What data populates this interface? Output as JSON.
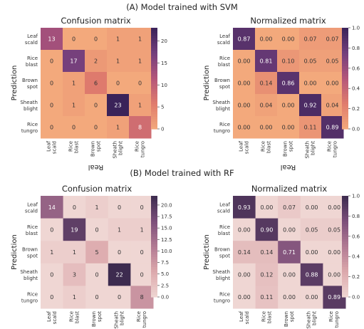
{
  "sections": [
    {
      "title": "(A) Model trained with SVM"
    },
    {
      "title": "(B) Model trained with RF"
    }
  ],
  "chart_data": [
    {
      "type": "heatmap",
      "title": "Confusion matrix",
      "xlabel": "Real",
      "ylabel": "Prediction",
      "x_categories": [
        "Leaf\nscald",
        "Rice\nblast",
        "Brown\nspot",
        "Sheath\nblight",
        "Rice\ntungro"
      ],
      "y_categories": [
        "Leaf\nscald",
        "Rice\nblast",
        "Brown\nspot",
        "Sheath\nblight",
        "Rice\ntungro"
      ],
      "values": [
        [
          13,
          0,
          0,
          1,
          1
        ],
        [
          0,
          17,
          2,
          1,
          1
        ],
        [
          0,
          1,
          6,
          0,
          0
        ],
        [
          0,
          1,
          0,
          23,
          1
        ],
        [
          0,
          0,
          0,
          1,
          8
        ]
      ],
      "value_labels": [
        [
          "13",
          "0",
          "0",
          "1",
          "1"
        ],
        [
          "0",
          "17",
          "2",
          "1",
          "1"
        ],
        [
          "0",
          "1",
          "6",
          "0",
          "0"
        ],
        [
          "0",
          "1",
          "0",
          "23",
          "1"
        ],
        [
          "0",
          "0",
          "0",
          "1",
          "8"
        ]
      ],
      "colorscale": [
        "#f3a97c",
        "#e07c6c",
        "#b4567a",
        "#733f7c",
        "#3a2359"
      ],
      "clim": [
        0,
        23
      ],
      "colorbar_ticks": [
        "0",
        "5",
        "10",
        "15",
        "20"
      ],
      "colorbar_values": [
        0,
        5,
        10,
        15,
        20
      ]
    },
    {
      "type": "heatmap",
      "title": "Normalized matrix",
      "xlabel": "Real",
      "ylabel": "Prediction",
      "x_categories": [
        "Leaf\nscald",
        "Rice\nblast",
        "Brown\nspot",
        "Sheath\nblight",
        "Rice\ntungro"
      ],
      "y_categories": [
        "Leaf\nscald",
        "Rice\nblast",
        "Brown\nspot",
        "Sheath\nblight",
        "Rice\ntungro"
      ],
      "values": [
        [
          0.87,
          0,
          0,
          0.07,
          0.07
        ],
        [
          0,
          0.81,
          0.1,
          0.05,
          0.05
        ],
        [
          0,
          0.14,
          0.86,
          0,
          0
        ],
        [
          0,
          0.04,
          0,
          0.92,
          0.04
        ],
        [
          0,
          0,
          0,
          0.11,
          0.89
        ]
      ],
      "value_labels": [
        [
          "0.87",
          "0.00",
          "0.00",
          "0.07",
          "0.07"
        ],
        [
          "0.00",
          "0.81",
          "0.10",
          "0.05",
          "0.05"
        ],
        [
          "0.00",
          "0.14",
          "0.86",
          "0.00",
          "0.00"
        ],
        [
          "0.00",
          "0.04",
          "0.00",
          "0.92",
          "0.04"
        ],
        [
          "0.00",
          "0.00",
          "0.00",
          "0.11",
          "0.89"
        ]
      ],
      "colorscale": [
        "#f3a97c",
        "#e07c6c",
        "#b4567a",
        "#733f7c",
        "#3a2359"
      ],
      "clim": [
        0,
        1
      ],
      "colorbar_ticks": [
        "0.0",
        "0.2",
        "0.4",
        "0.6",
        "0.8",
        "1.0"
      ],
      "colorbar_values": [
        0,
        0.2,
        0.4,
        0.6,
        0.8,
        1.0
      ]
    },
    {
      "type": "heatmap",
      "title": "Confusion matrix",
      "xlabel": "Real",
      "ylabel": "Prediction",
      "x_categories": [
        "Leaf\nscald",
        "Rice\nblast",
        "Brown\nspot",
        "Sheath\nblight",
        "Rice\ntungro"
      ],
      "y_categories": [
        "Leaf\nscald",
        "Rice\nblast",
        "Brown\nspot",
        "Sheath\nblight",
        "Rice\ntungro"
      ],
      "values": [
        [
          14,
          0,
          1,
          0,
          0
        ],
        [
          0,
          19,
          0,
          1,
          1
        ],
        [
          1,
          1,
          5,
          0,
          0
        ],
        [
          0,
          3,
          0,
          22,
          0
        ],
        [
          0,
          1,
          0,
          0,
          8
        ]
      ],
      "value_labels": [
        [
          "14",
          "0",
          "1",
          "0",
          "0"
        ],
        [
          "0",
          "19",
          "0",
          "1",
          "1"
        ],
        [
          "1",
          "1",
          "5",
          "0",
          "0"
        ],
        [
          "0",
          "3",
          "0",
          "22",
          "0"
        ],
        [
          "0",
          "1",
          "0",
          "0",
          "8"
        ]
      ],
      "colorscale": [
        "#efd6d3",
        "#dca9ac",
        "#b27a93",
        "#7c4f7a",
        "#3d2b4f"
      ],
      "clim": [
        0,
        22
      ],
      "colorbar_ticks": [
        "0.0",
        "2.5",
        "5.0",
        "7.5",
        "10.0",
        "12.5",
        "15.0",
        "17.5",
        "20.0"
      ],
      "colorbar_values": [
        0,
        2.5,
        5,
        7.5,
        10,
        12.5,
        15,
        17.5,
        20
      ]
    },
    {
      "type": "heatmap",
      "title": "Normalized matrix",
      "xlabel": "Real",
      "ylabel": "Prediction",
      "x_categories": [
        "Leaf\nscald",
        "Rice\nblast",
        "Brown\nspot",
        "Sheath\nblight",
        "Rice\ntungro"
      ],
      "y_categories": [
        "Leaf\nscald",
        "Rice\nblast",
        "Brown\nspot",
        "Sheath\nblight",
        "Rice\ntungro"
      ],
      "values": [
        [
          0.93,
          0,
          0.07,
          0,
          0
        ],
        [
          0,
          0.9,
          0,
          0.05,
          0.05
        ],
        [
          0.14,
          0.14,
          0.71,
          0,
          0
        ],
        [
          0,
          0.12,
          0,
          0.88,
          0
        ],
        [
          0,
          0.11,
          0,
          0,
          0.89
        ]
      ],
      "value_labels": [
        [
          "0.93",
          "0.00",
          "0.07",
          "0.00",
          "0.00"
        ],
        [
          "0.00",
          "0.90",
          "0.00",
          "0.05",
          "0.05"
        ],
        [
          "0.14",
          "0.14",
          "0.71",
          "0.00",
          "0.00"
        ],
        [
          "0.00",
          "0.12",
          "0.00",
          "0.88",
          "0.00"
        ],
        [
          "0.00",
          "0.11",
          "0.00",
          "0.00",
          "0.89"
        ]
      ],
      "colorscale": [
        "#efd6d3",
        "#dca9ac",
        "#b27a93",
        "#7c4f7a",
        "#3d2b4f"
      ],
      "clim": [
        0,
        1
      ],
      "colorbar_ticks": [
        "0.0",
        "0.2",
        "0.4",
        "0.6",
        "0.8",
        "1.0"
      ],
      "colorbar_values": [
        0,
        0.2,
        0.4,
        0.6,
        0.8,
        1.0
      ]
    }
  ]
}
